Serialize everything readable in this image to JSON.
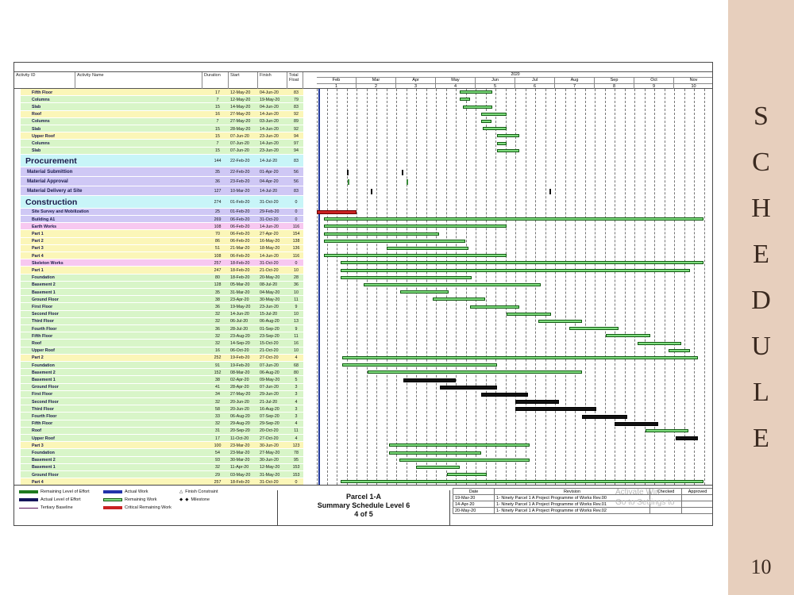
{
  "header": {
    "columns": [
      "Activity ID",
      "Activity Name",
      "Duration",
      "Start",
      "Finish",
      "Total Float"
    ],
    "year": "2020",
    "months": [
      "Feb",
      "Mar",
      "Apr",
      "May",
      "Jun",
      "Jul",
      "Aug",
      "Sep",
      "Oct",
      "Nov"
    ],
    "weeks": [
      "1",
      "2",
      "3",
      "4",
      "5",
      "6",
      "7",
      "8",
      "9",
      "10"
    ]
  },
  "rows": [
    {
      "name": "Fifth Floor",
      "dur": "17",
      "start": "12-May-20",
      "finish": "04-Jun-20",
      "float": "83",
      "color": "#fbf6b8",
      "size": "s"
    },
    {
      "name": "Columns",
      "dur": "7",
      "start": "12-May-20",
      "finish": "19-May-20",
      "float": "79",
      "color": "#d8f5c8",
      "size": "s"
    },
    {
      "name": "Slab",
      "dur": "15",
      "start": "14-May-20",
      "finish": "04-Jun-20",
      "float": "83",
      "color": "#d8f5c8",
      "size": "s"
    },
    {
      "name": "Roof",
      "dur": "16",
      "start": "27-May-20",
      "finish": "14-Jun-20",
      "float": "92",
      "color": "#fbf6b8",
      "size": "s"
    },
    {
      "name": "Columns",
      "dur": "7",
      "start": "27-May-20",
      "finish": "03-Jun-20",
      "float": "89",
      "color": "#d8f5c8",
      "size": "s"
    },
    {
      "name": "Slab",
      "dur": "15",
      "start": "28-May-20",
      "finish": "14-Jun-20",
      "float": "92",
      "color": "#d8f5c8",
      "size": "s"
    },
    {
      "name": "Upper Roof",
      "dur": "15",
      "start": "07-Jun-20",
      "finish": "23-Jun-20",
      "float": "94",
      "color": "#fbf6b8",
      "size": "s"
    },
    {
      "name": "Columns",
      "dur": "7",
      "start": "07-Jun-20",
      "finish": "14-Jun-20",
      "float": "97",
      "color": "#d8f5c8",
      "size": "s"
    },
    {
      "name": "Slab",
      "dur": "15",
      "start": "07-Jun-20",
      "finish": "23-Jun-20",
      "float": "94",
      "color": "#d8f5c8",
      "size": "s"
    },
    {
      "name": "Procurement",
      "dur": "144",
      "start": "22-Feb-20",
      "finish": "14-Jul-20",
      "float": "83",
      "color": "#c8f5f8",
      "size": "l"
    },
    {
      "name": "Material Submittion",
      "dur": "35",
      "start": "22-Feb-20",
      "finish": "01-Apr-20",
      "float": "56",
      "color": "#cfc8f5",
      "size": "m"
    },
    {
      "name": "Material Approval",
      "dur": "36",
      "start": "23-Feb-20",
      "finish": "04-Apr-20",
      "float": "56",
      "color": "#cfc8f5",
      "size": "m"
    },
    {
      "name": "Material Delivery at Site",
      "dur": "127",
      "start": "10-Mar-20",
      "finish": "14-Jul-20",
      "float": "83",
      "color": "#cfc8f5",
      "size": "m"
    },
    {
      "name": "Construction",
      "dur": "274",
      "start": "01-Feb-20",
      "finish": "31-Oct-20",
      "float": "0",
      "color": "#c8f5f8",
      "size": "l"
    },
    {
      "name": "Site Survey and Mobilization",
      "dur": "25",
      "start": "01-Feb-20",
      "finish": "29-Feb-20",
      "float": "0",
      "color": "#cfc8f5",
      "size": "s"
    },
    {
      "name": "Building A1",
      "dur": "269",
      "start": "06-Feb-20",
      "finish": "31-Oct-20",
      "float": "0",
      "color": "#cfc8f5",
      "size": "s"
    },
    {
      "name": "Earth Works",
      "dur": "108",
      "start": "06-Feb-20",
      "finish": "14-Jun-20",
      "float": "116",
      "color": "#f7c8f0",
      "size": "s"
    },
    {
      "name": "Part 1",
      "dur": "70",
      "start": "06-Feb-20",
      "finish": "27-Apr-20",
      "float": "154",
      "color": "#fbf6b8",
      "size": "s"
    },
    {
      "name": "Part 2",
      "dur": "86",
      "start": "06-Feb-20",
      "finish": "16-May-20",
      "float": "138",
      "color": "#fbf6b8",
      "size": "s"
    },
    {
      "name": "Part 3",
      "dur": "51",
      "start": "21-Mar-20",
      "finish": "18-May-20",
      "float": "136",
      "color": "#fbf6b8",
      "size": "s"
    },
    {
      "name": "Part 4",
      "dur": "108",
      "start": "06-Feb-20",
      "finish": "14-Jun-20",
      "float": "116",
      "color": "#fbf6b8",
      "size": "s"
    },
    {
      "name": "Skeleton Works",
      "dur": "257",
      "start": "18-Feb-20",
      "finish": "31-Oct-20",
      "float": "0",
      "color": "#f7c8f0",
      "size": "s"
    },
    {
      "name": "Part 1",
      "dur": "247",
      "start": "18-Feb-20",
      "finish": "21-Oct-20",
      "float": "10",
      "color": "#fbf6b8",
      "size": "s"
    },
    {
      "name": "Foundation",
      "dur": "80",
      "start": "18-Feb-20",
      "finish": "20-May-20",
      "float": "28",
      "color": "#d8f5c8",
      "size": "s"
    },
    {
      "name": "Basement 2",
      "dur": "128",
      "start": "05-Mar-20",
      "finish": "08-Jul-20",
      "float": "36",
      "color": "#d8f5c8",
      "size": "s"
    },
    {
      "name": "Basement 1",
      "dur": "35",
      "start": "31-Mar-20",
      "finish": "04-May-20",
      "float": "10",
      "color": "#d8f5c8",
      "size": "s"
    },
    {
      "name": "Ground Floor",
      "dur": "38",
      "start": "23-Apr-20",
      "finish": "30-May-20",
      "float": "11",
      "color": "#d8f5c8",
      "size": "s"
    },
    {
      "name": "First Floor",
      "dur": "36",
      "start": "19-May-20",
      "finish": "23-Jun-20",
      "float": "9",
      "color": "#d8f5c8",
      "size": "s"
    },
    {
      "name": "Second Floor",
      "dur": "32",
      "start": "14-Jun-20",
      "finish": "15-Jul-20",
      "float": "10",
      "color": "#d8f5c8",
      "size": "s"
    },
    {
      "name": "Third Floor",
      "dur": "32",
      "start": "06-Jul-20",
      "finish": "06-Aug-20",
      "float": "13",
      "color": "#d8f5c8",
      "size": "s"
    },
    {
      "name": "Fourth Floor",
      "dur": "36",
      "start": "28-Jul-20",
      "finish": "01-Sep-20",
      "float": "9",
      "color": "#d8f5c8",
      "size": "s"
    },
    {
      "name": "Fifth Floor",
      "dur": "32",
      "start": "23-Aug-20",
      "finish": "23-Sep-20",
      "float": "11",
      "color": "#d8f5c8",
      "size": "s"
    },
    {
      "name": "Roof",
      "dur": "32",
      "start": "14-Sep-20",
      "finish": "15-Oct-20",
      "float": "16",
      "color": "#d8f5c8",
      "size": "s"
    },
    {
      "name": "Upper Roof",
      "dur": "16",
      "start": "06-Oct-20",
      "finish": "21-Oct-20",
      "float": "10",
      "color": "#d8f5c8",
      "size": "s"
    },
    {
      "name": "Part 2",
      "dur": "252",
      "start": "19-Feb-20",
      "finish": "27-Oct-20",
      "float": "4",
      "color": "#fbf6b8",
      "size": "s"
    },
    {
      "name": "Foundation",
      "dur": "91",
      "start": "19-Feb-20",
      "finish": "07-Jun-20",
      "float": "68",
      "color": "#d8f5c8",
      "size": "s"
    },
    {
      "name": "Basement 2",
      "dur": "152",
      "start": "08-Mar-20",
      "finish": "06-Aug-20",
      "float": "80",
      "color": "#d8f5c8",
      "size": "s"
    },
    {
      "name": "Basement 1",
      "dur": "38",
      "start": "02-Apr-20",
      "finish": "09-May-20",
      "float": "5",
      "color": "#d8f5c8",
      "size": "s"
    },
    {
      "name": "Ground Floor",
      "dur": "41",
      "start": "28-Apr-20",
      "finish": "07-Jun-20",
      "float": "3",
      "color": "#d8f5c8",
      "size": "s"
    },
    {
      "name": "First Floor",
      "dur": "34",
      "start": "27-May-20",
      "finish": "29-Jun-20",
      "float": "3",
      "color": "#d8f5c8",
      "size": "s"
    },
    {
      "name": "Second Floor",
      "dur": "32",
      "start": "20-Jun-20",
      "finish": "21-Jul-20",
      "float": "4",
      "color": "#d8f5c8",
      "size": "s"
    },
    {
      "name": "Third Floor",
      "dur": "58",
      "start": "20-Jun-20",
      "finish": "16-Aug-20",
      "float": "3",
      "color": "#d8f5c8",
      "size": "s"
    },
    {
      "name": "Fourth Floor",
      "dur": "33",
      "start": "06-Aug-20",
      "finish": "07-Sep-20",
      "float": "3",
      "color": "#d8f5c8",
      "size": "s"
    },
    {
      "name": "Fifth Floor",
      "dur": "32",
      "start": "29-Aug-20",
      "finish": "29-Sep-20",
      "float": "4",
      "color": "#d8f5c8",
      "size": "s"
    },
    {
      "name": "Roof",
      "dur": "31",
      "start": "20-Sep-20",
      "finish": "20-Oct-20",
      "float": "11",
      "color": "#d8f5c8",
      "size": "s"
    },
    {
      "name": "Upper Roof",
      "dur": "17",
      "start": "11-Oct-20",
      "finish": "27-Oct-20",
      "float": "4",
      "color": "#d8f5c8",
      "size": "s"
    },
    {
      "name": "Part 3",
      "dur": "100",
      "start": "23-Mar-20",
      "finish": "30-Jun-20",
      "float": "123",
      "color": "#fbf6b8",
      "size": "s"
    },
    {
      "name": "Foundation",
      "dur": "54",
      "start": "23-Mar-20",
      "finish": "27-May-20",
      "float": "78",
      "color": "#d8f5c8",
      "size": "s"
    },
    {
      "name": "Basement 2",
      "dur": "93",
      "start": "30-Mar-20",
      "finish": "30-Jun-20",
      "float": "95",
      "color": "#d8f5c8",
      "size": "s"
    },
    {
      "name": "Basement 1",
      "dur": "32",
      "start": "11-Apr-20",
      "finish": "12-May-20",
      "float": "153",
      "color": "#d8f5c8",
      "size": "s"
    },
    {
      "name": "Ground Floor",
      "dur": "29",
      "start": "03-May-20",
      "finish": "31-May-20",
      "float": "153",
      "color": "#d8f5c8",
      "size": "s"
    },
    {
      "name": "Part 4",
      "dur": "257",
      "start": "18-Feb-20",
      "finish": "31-Oct-20",
      "float": "0",
      "color": "#fbf6b8",
      "size": "s"
    }
  ],
  "legend": {
    "remaining_loe": "Remaining Level of Effort",
    "actual_loe": "Actual Level of Effort",
    "tertiary": "Tertiary Baseline",
    "actual_work": "Actual Work",
    "remaining_work": "Remaining Work",
    "critical": "Critical Remaining Work",
    "finish_constraint": "Finish Constraint",
    "milestone": "Milestone",
    "finish_constraint_symbol": "△",
    "milestone_symbol": "◆",
    "milestone_symbol_2": "◆",
    "colors": {
      "remaining_loe": "#1f7a1f",
      "actual_loe": "#14145a",
      "tertiary": "#5a145a",
      "actual_work": "#2233aa",
      "remaining_work": "#7fdc7f",
      "critical": "#c92222"
    }
  },
  "title_block": {
    "line1": "Parcel 1-A",
    "line2": "Summary Schedule Level 6",
    "line3": "4 of 5"
  },
  "revisions": {
    "headers": [
      "Date",
      "Revision",
      "Checked",
      "Approved"
    ],
    "rows": [
      {
        "date": "19-Mar-20",
        "rev": "1- Ninety Parcel 1 A Project Programme of Works Rev.00"
      },
      {
        "date": "14-Apr-20",
        "rev": "1- Ninety Parcel 1 A Project Programme of Works Rev.01"
      },
      {
        "date": "20-May-20",
        "rev": "1- Ninety Parcel 1 A Project Programme of Works Rev.02"
      }
    ]
  },
  "watermark": {
    "line1": "Activate Win",
    "line2": "Go to Settings to"
  },
  "sidebar": {
    "letters": [
      "S",
      "C",
      "H",
      "E",
      "D",
      "U",
      "L",
      "E"
    ],
    "page_number": "10"
  },
  "gantt": {
    "timeline_start": "2020-02-01",
    "timeline_end": "2020-11-07",
    "today": "2020-02-01"
  }
}
